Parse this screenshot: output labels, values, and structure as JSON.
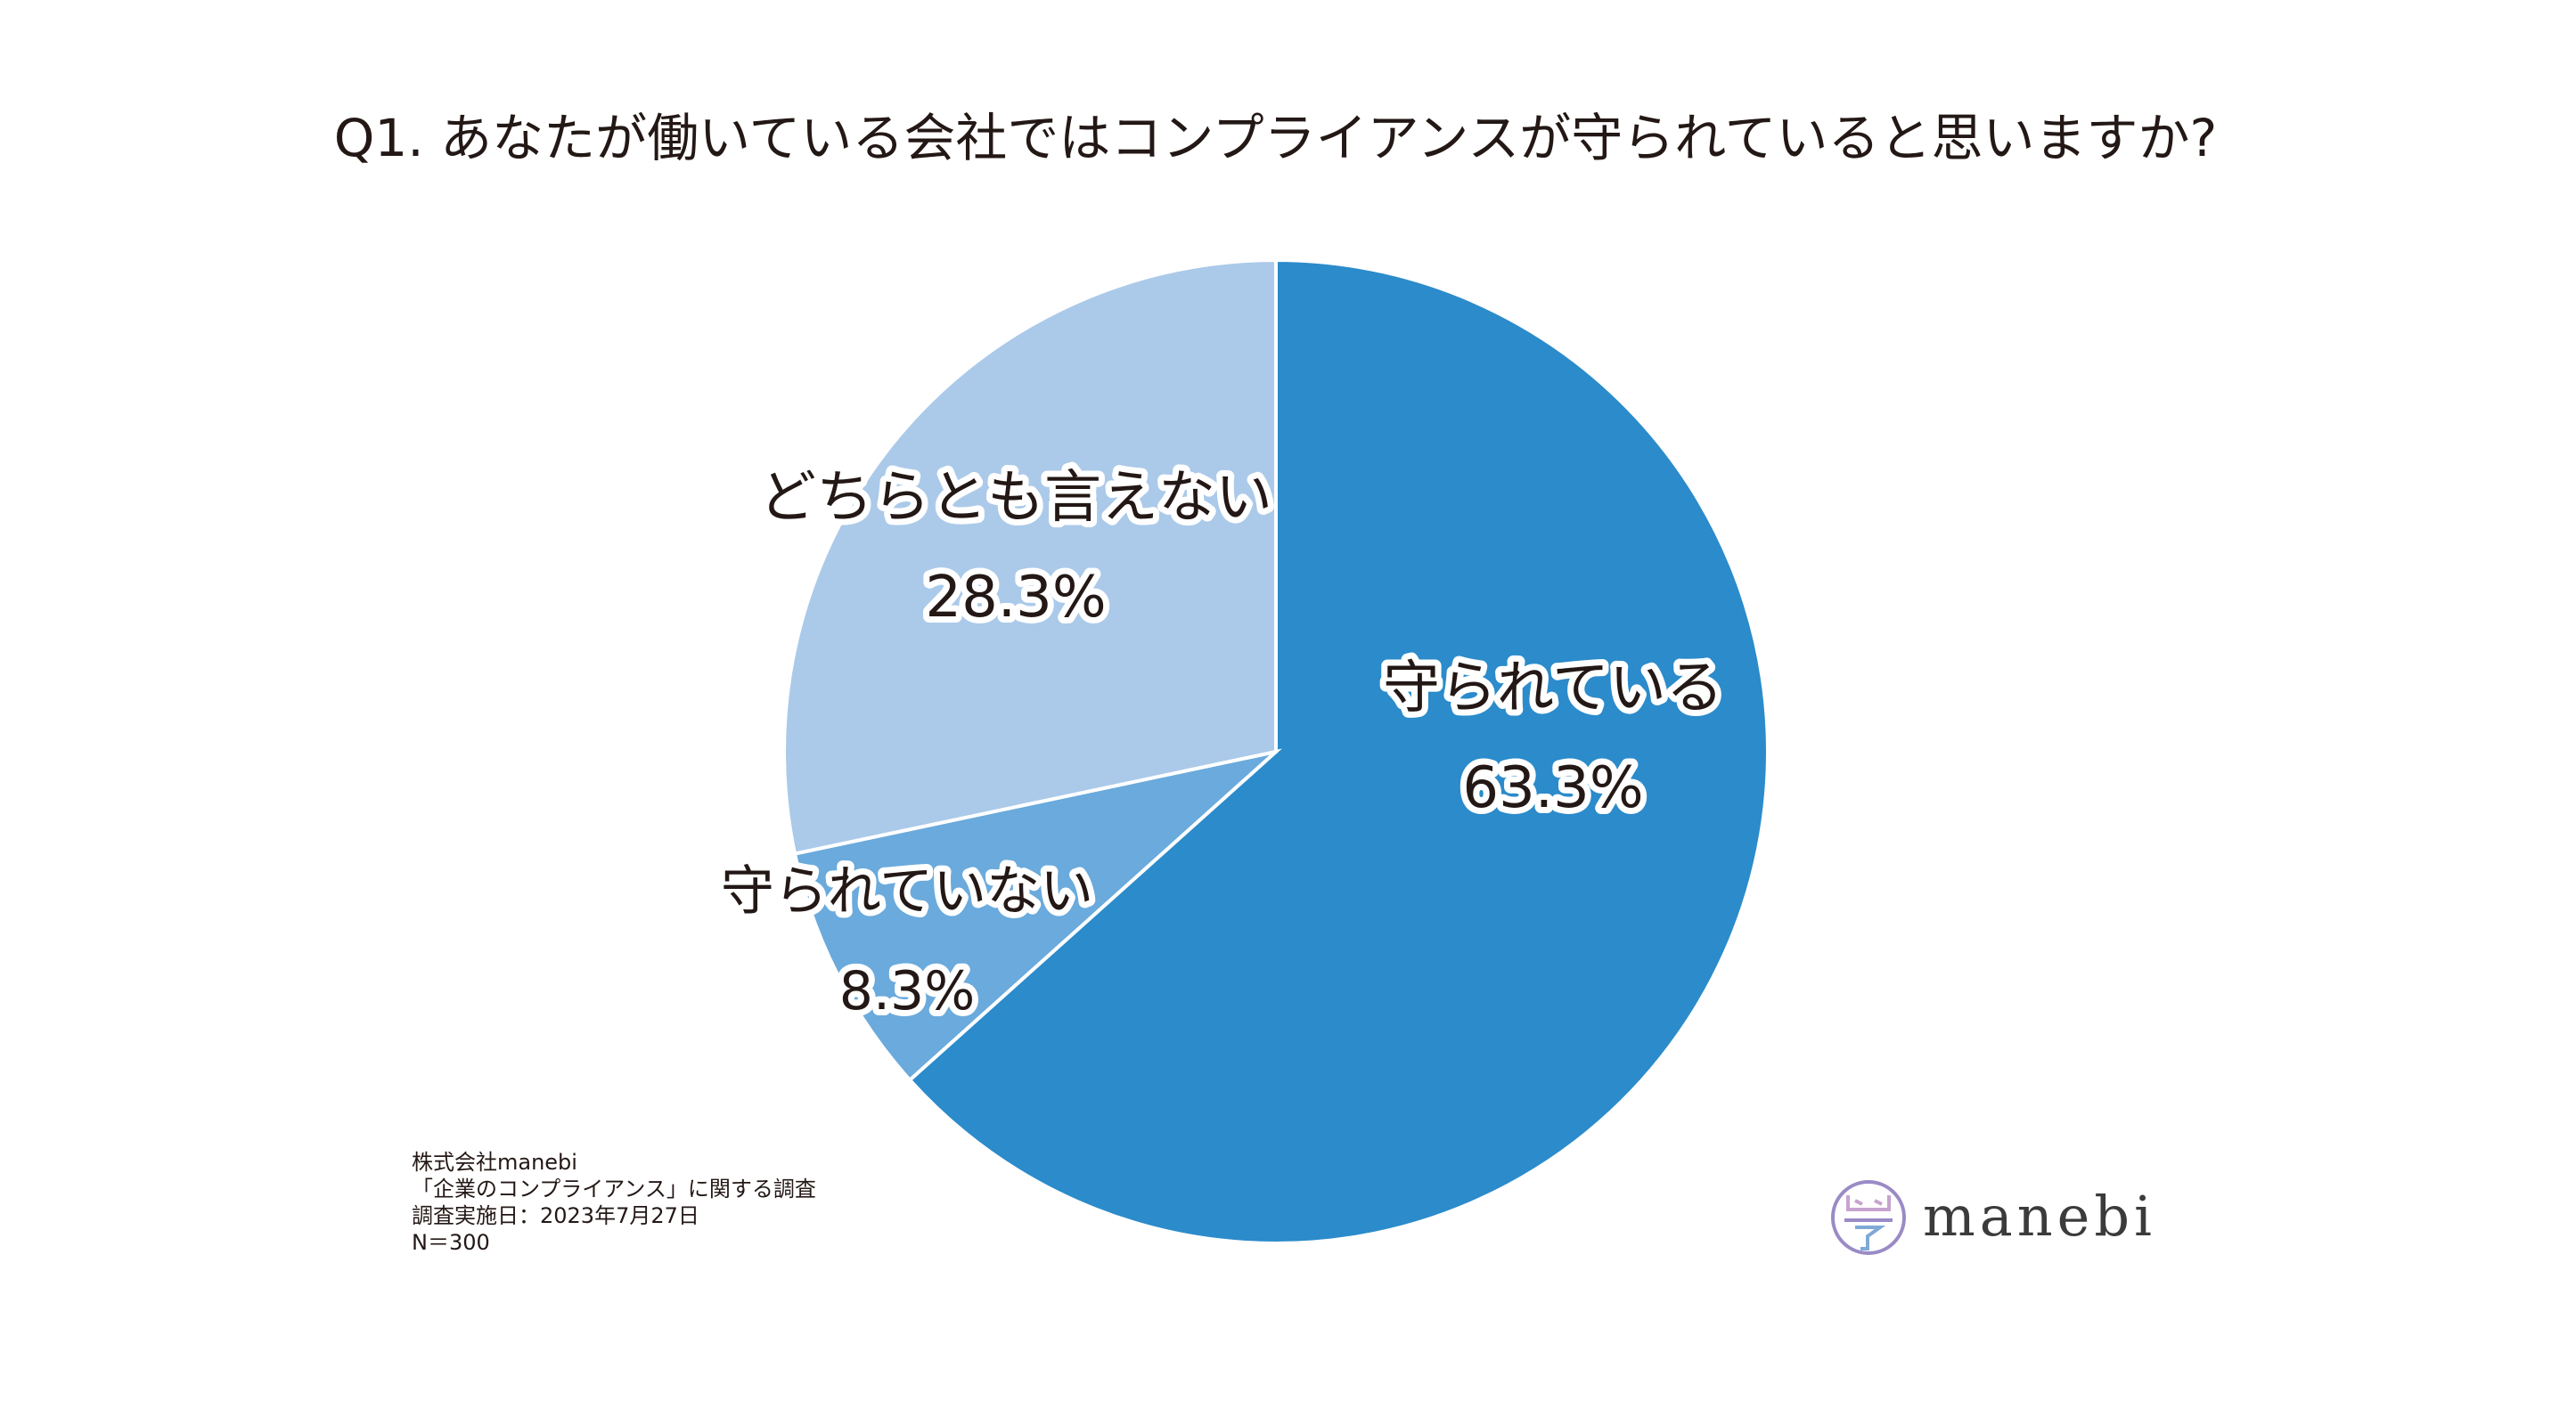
{
  "title": "Q1. あなたが働いている会社ではコンプライアンスが守られていると思いますか?",
  "chart_data": {
    "type": "pie",
    "title": "Q1. あなたが働いている会社ではコンプライアンスが守られていると思いますか?",
    "start": "12 o'clock",
    "direction": "clockwise",
    "slices": [
      {
        "label": "守られている",
        "value_text": "63.3%",
        "value": 63.3,
        "color": "#2b8bcb"
      },
      {
        "label": "守られていない",
        "value_text": "8.3%",
        "value": 8.3,
        "color": "#6aaadc"
      },
      {
        "label": "どちらとも言えない",
        "value_text": "28.3%",
        "value": 28.3,
        "color": "#abcaea"
      }
    ]
  },
  "footnote": {
    "company": "株式会社manebi",
    "survey": "「企業のコンプライアンス」に関する調査",
    "date": "調査実施日：2023年7月27日",
    "n": "N＝300"
  },
  "logo": {
    "text": "manebi",
    "color": "#3b3b3b",
    "mark_colors": [
      "#c7a3cf",
      "#9a8bc6",
      "#7fa9d6"
    ]
  }
}
